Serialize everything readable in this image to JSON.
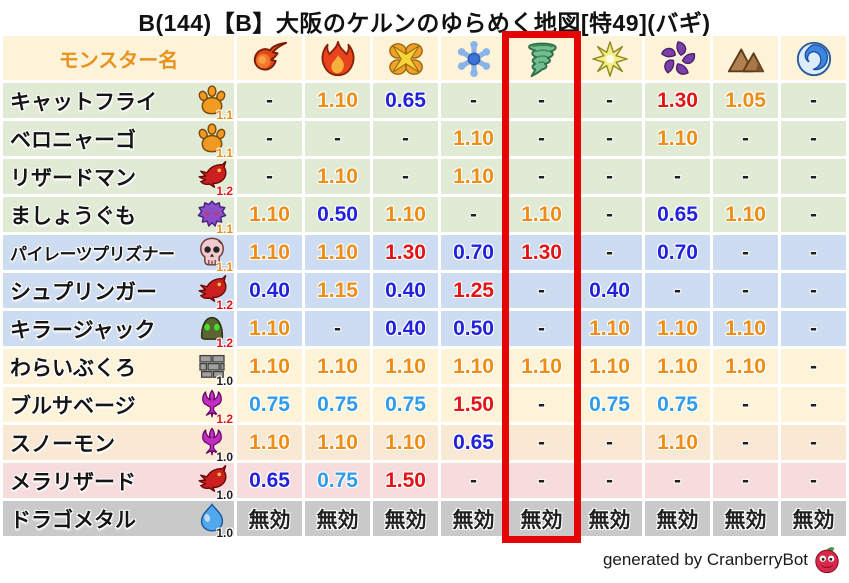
{
  "title": "B(144)【B】大阪のケルンのゆらめく地図[特49](バギ)",
  "footer": {
    "text": "generated by CranberryBot",
    "icon": "cranberry-bot"
  },
  "colors": {
    "orange": "#ee8d15",
    "red": "#e31414",
    "blue": "#2222dd",
    "light_blue": "#2f9bed",
    "black": "#1f1f1f",
    "header_text": "#e8921e",
    "row_green": "#e1ead5",
    "row_blue": "#cddcf0",
    "row_cream": "#fdf3d8",
    "row_peach": "#f9e9d4",
    "row_pink": "#f6dcdc",
    "row_gray": "#c9c9c9",
    "highlight_box": "#e60505"
  },
  "chart_data": {
    "type": "table",
    "name_header": "モンスター名",
    "element_columns": [
      {
        "icon": "fireball"
      },
      {
        "icon": "flame"
      },
      {
        "icon": "explosion"
      },
      {
        "icon": "snowflake"
      },
      {
        "icon": "tornado"
      },
      {
        "icon": "sparkle"
      },
      {
        "icon": "pinwheel"
      },
      {
        "icon": "mountain"
      },
      {
        "icon": "wave"
      }
    ],
    "highlighted_column_index": 5,
    "value_color_codes": {
      "o": "orange",
      "r": "red",
      "b": "blue",
      "lb": "light_blue",
      "k": "black"
    },
    "rows": [
      {
        "name": "キャットフライ",
        "family_icon": "paw",
        "multiplier": "1.1",
        "multiplier_color": "o",
        "row_bg": "green",
        "values": [
          {
            "v": "-",
            "c": "k"
          },
          {
            "v": "1.10",
            "c": "o"
          },
          {
            "v": "0.65",
            "c": "b"
          },
          {
            "v": "-",
            "c": "k"
          },
          {
            "v": "-",
            "c": "k"
          },
          {
            "v": "-",
            "c": "k"
          },
          {
            "v": "1.30",
            "c": "r"
          },
          {
            "v": "1.05",
            "c": "o"
          },
          {
            "v": "-",
            "c": "k"
          }
        ]
      },
      {
        "name": "ベロニャーゴ",
        "family_icon": "paw",
        "multiplier": "1.1",
        "multiplier_color": "o",
        "row_bg": "green",
        "values": [
          {
            "v": "-",
            "c": "k"
          },
          {
            "v": "-",
            "c": "k"
          },
          {
            "v": "-",
            "c": "k"
          },
          {
            "v": "1.10",
            "c": "o"
          },
          {
            "v": "-",
            "c": "k"
          },
          {
            "v": "-",
            "c": "k"
          },
          {
            "v": "1.10",
            "c": "o"
          },
          {
            "v": "-",
            "c": "k"
          },
          {
            "v": "-",
            "c": "k"
          }
        ]
      },
      {
        "name": "リザードマン",
        "family_icon": "dragon",
        "multiplier": "1.2",
        "multiplier_color": "r",
        "row_bg": "green",
        "values": [
          {
            "v": "-",
            "c": "k"
          },
          {
            "v": "1.10",
            "c": "o"
          },
          {
            "v": "-",
            "c": "k"
          },
          {
            "v": "1.10",
            "c": "o"
          },
          {
            "v": "-",
            "c": "k"
          },
          {
            "v": "-",
            "c": "k"
          },
          {
            "v": "-",
            "c": "k"
          },
          {
            "v": "-",
            "c": "k"
          },
          {
            "v": "-",
            "c": "k"
          }
        ]
      },
      {
        "name": "ましょうぐも",
        "family_icon": "spider",
        "multiplier": "1.1",
        "multiplier_color": "o",
        "row_bg": "green",
        "values": [
          {
            "v": "1.10",
            "c": "o"
          },
          {
            "v": "0.50",
            "c": "b"
          },
          {
            "v": "1.10",
            "c": "o"
          },
          {
            "v": "-",
            "c": "k"
          },
          {
            "v": "1.10",
            "c": "o"
          },
          {
            "v": "-",
            "c": "k"
          },
          {
            "v": "0.65",
            "c": "b"
          },
          {
            "v": "1.10",
            "c": "o"
          },
          {
            "v": "-",
            "c": "k"
          }
        ]
      },
      {
        "name": "パイレーツプリズナー",
        "family_icon": "skull",
        "multiplier": "1.1",
        "multiplier_color": "o",
        "row_bg": "blue",
        "values": [
          {
            "v": "1.10",
            "c": "o"
          },
          {
            "v": "1.10",
            "c": "o"
          },
          {
            "v": "1.30",
            "c": "r"
          },
          {
            "v": "0.70",
            "c": "b"
          },
          {
            "v": "1.30",
            "c": "r"
          },
          {
            "v": "-",
            "c": "k"
          },
          {
            "v": "0.70",
            "c": "b"
          },
          {
            "v": "-",
            "c": "k"
          },
          {
            "v": "-",
            "c": "k"
          }
        ]
      },
      {
        "name": "シュプリンガー",
        "family_icon": "dragon",
        "multiplier": "1.2",
        "multiplier_color": "r",
        "row_bg": "blue",
        "values": [
          {
            "v": "0.40",
            "c": "b"
          },
          {
            "v": "1.15",
            "c": "o"
          },
          {
            "v": "0.40",
            "c": "b"
          },
          {
            "v": "1.25",
            "c": "r"
          },
          {
            "v": "-",
            "c": "k"
          },
          {
            "v": "0.40",
            "c": "b"
          },
          {
            "v": "-",
            "c": "k"
          },
          {
            "v": "-",
            "c": "k"
          },
          {
            "v": "-",
            "c": "k"
          }
        ]
      },
      {
        "name": "キラージャック",
        "family_icon": "helmet",
        "multiplier": "1.2",
        "multiplier_color": "r",
        "row_bg": "blue",
        "values": [
          {
            "v": "1.10",
            "c": "o"
          },
          {
            "v": "-",
            "c": "k"
          },
          {
            "v": "0.40",
            "c": "b"
          },
          {
            "v": "0.50",
            "c": "b"
          },
          {
            "v": "-",
            "c": "k"
          },
          {
            "v": "1.10",
            "c": "o"
          },
          {
            "v": "1.10",
            "c": "o"
          },
          {
            "v": "1.10",
            "c": "o"
          },
          {
            "v": "-",
            "c": "k"
          }
        ]
      },
      {
        "name": "わらいぶくろ",
        "family_icon": "brick",
        "multiplier": "1.0",
        "multiplier_color": "k",
        "row_bg": "cream",
        "values": [
          {
            "v": "1.10",
            "c": "o"
          },
          {
            "v": "1.10",
            "c": "o"
          },
          {
            "v": "1.10",
            "c": "o"
          },
          {
            "v": "1.10",
            "c": "o"
          },
          {
            "v": "1.10",
            "c": "o"
          },
          {
            "v": "1.10",
            "c": "o"
          },
          {
            "v": "1.10",
            "c": "o"
          },
          {
            "v": "1.10",
            "c": "o"
          },
          {
            "v": "-",
            "c": "k"
          }
        ]
      },
      {
        "name": "ブルサベージ",
        "family_icon": "trident",
        "multiplier": "1.2",
        "multiplier_color": "r",
        "row_bg": "cream",
        "values": [
          {
            "v": "0.75",
            "c": "lb"
          },
          {
            "v": "0.75",
            "c": "lb"
          },
          {
            "v": "0.75",
            "c": "lb"
          },
          {
            "v": "1.50",
            "c": "r"
          },
          {
            "v": "-",
            "c": "k"
          },
          {
            "v": "0.75",
            "c": "lb"
          },
          {
            "v": "0.75",
            "c": "lb"
          },
          {
            "v": "-",
            "c": "k"
          },
          {
            "v": "-",
            "c": "k"
          }
        ]
      },
      {
        "name": "スノーモン",
        "family_icon": "trident",
        "multiplier": "1.0",
        "multiplier_color": "k",
        "row_bg": "peach",
        "values": [
          {
            "v": "1.10",
            "c": "o"
          },
          {
            "v": "1.10",
            "c": "o"
          },
          {
            "v": "1.10",
            "c": "o"
          },
          {
            "v": "0.65",
            "c": "b"
          },
          {
            "v": "-",
            "c": "k"
          },
          {
            "v": "-",
            "c": "k"
          },
          {
            "v": "1.10",
            "c": "o"
          },
          {
            "v": "-",
            "c": "k"
          },
          {
            "v": "-",
            "c": "k"
          }
        ]
      },
      {
        "name": "メラリザード",
        "family_icon": "dragon",
        "multiplier": "1.0",
        "multiplier_color": "k",
        "row_bg": "pink",
        "values": [
          {
            "v": "0.65",
            "c": "b"
          },
          {
            "v": "0.75",
            "c": "lb"
          },
          {
            "v": "1.50",
            "c": "r"
          },
          {
            "v": "-",
            "c": "k"
          },
          {
            "v": "-",
            "c": "k"
          },
          {
            "v": "-",
            "c": "k"
          },
          {
            "v": "-",
            "c": "k"
          },
          {
            "v": "-",
            "c": "k"
          },
          {
            "v": "-",
            "c": "k"
          }
        ]
      },
      {
        "name": "ドラゴメタル",
        "family_icon": "slime",
        "multiplier": "1.0",
        "multiplier_color": "k",
        "row_bg": "gray",
        "values": [
          {
            "v": "無効",
            "c": "k"
          },
          {
            "v": "無効",
            "c": "k"
          },
          {
            "v": "無効",
            "c": "k"
          },
          {
            "v": "無効",
            "c": "k"
          },
          {
            "v": "無効",
            "c": "k"
          },
          {
            "v": "無効",
            "c": "k"
          },
          {
            "v": "無効",
            "c": "k"
          },
          {
            "v": "無効",
            "c": "k"
          },
          {
            "v": "無効",
            "c": "k"
          }
        ]
      }
    ]
  }
}
